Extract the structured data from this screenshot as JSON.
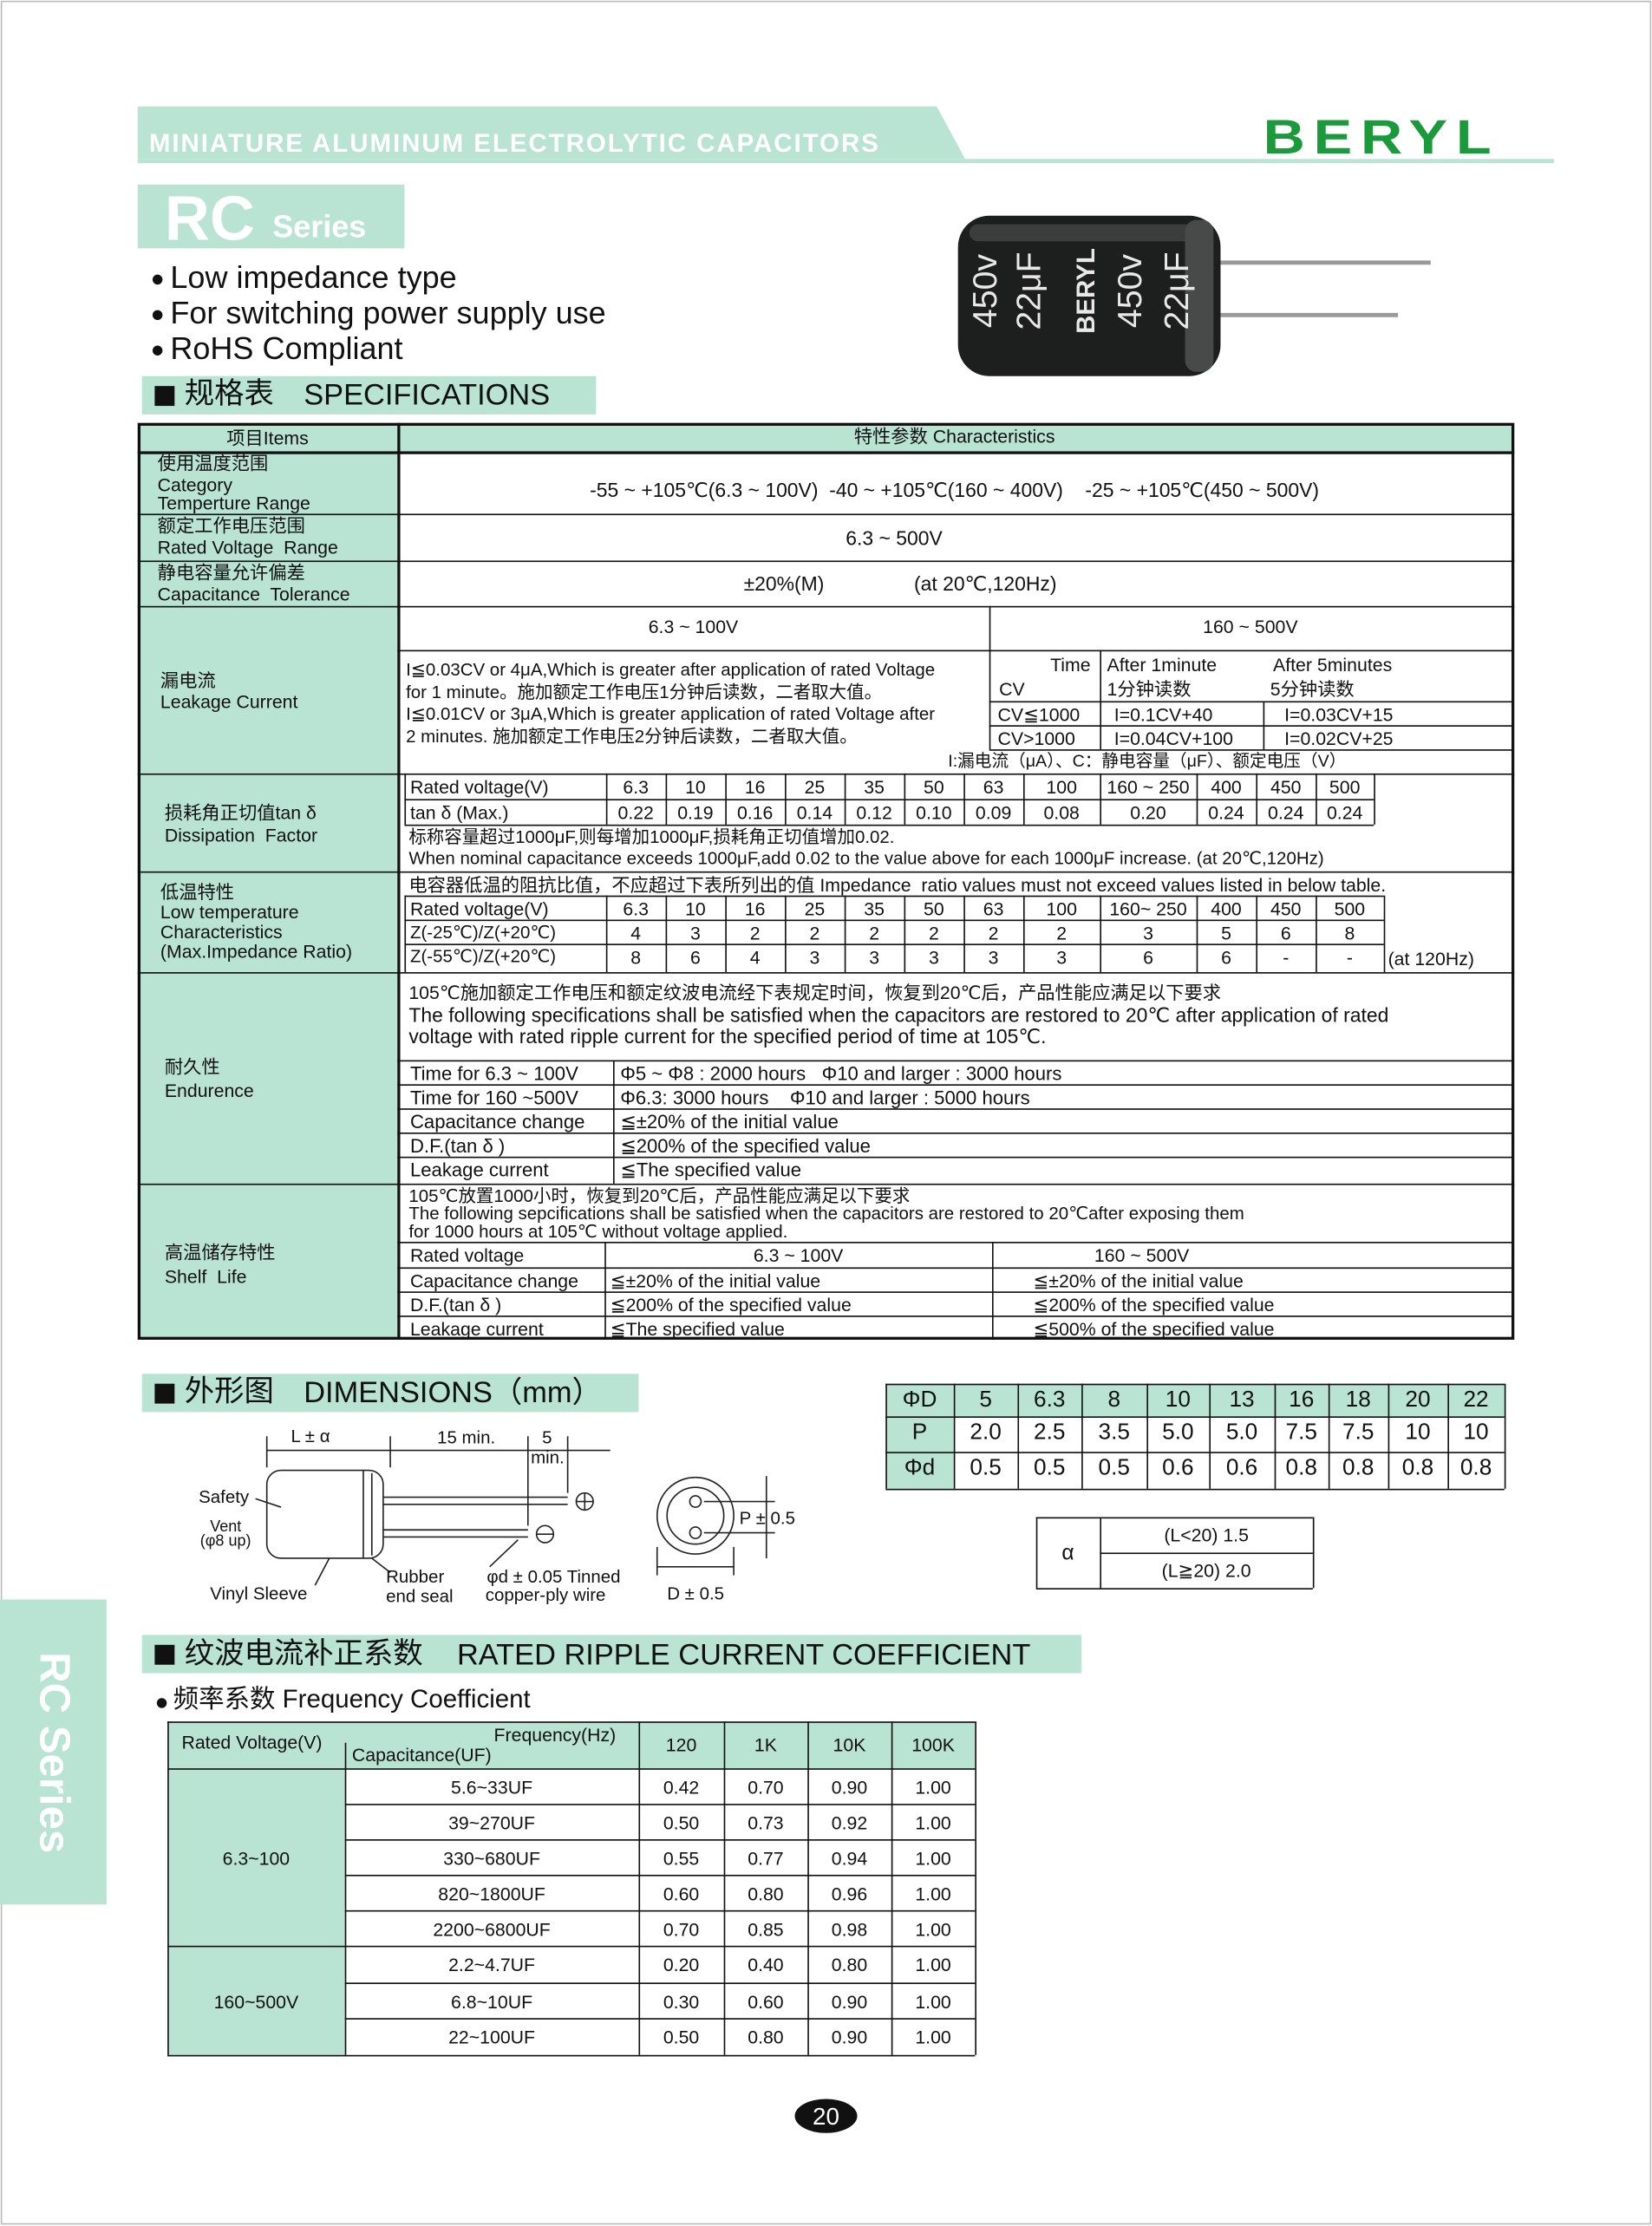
{
  "header": {
    "title": "MINIATURE ALUMINUM ELECTROLYTIC CAPACITORS",
    "brand": "BERYL"
  },
  "series": {
    "code": "RC",
    "label": "Series"
  },
  "features": [
    "Low impedance type",
    "For switching power supply use",
    "RoHS Compliant"
  ],
  "product_photo": {
    "lines": [
      "450v",
      "22μF",
      "BERYL",
      "450v",
      "22μF"
    ]
  },
  "specifications": {
    "heading_cn": "规格表",
    "heading_en": "SPECIFICATIONS",
    "items_header": "项目Items",
    "characteristics_header": "特性参数 Characteristics",
    "category_temperature": {
      "label_cn": "使用温度范围",
      "label_en": [
        "Category",
        "Temperture Range"
      ],
      "value": "-55 ~ +105℃(6.3 ~ 100V)  -40 ~ +105℃(160 ~ 400V)    -25 ~ +105℃(450 ~ 500V)"
    },
    "rated_voltage": {
      "label_cn": "额定工作电压范围",
      "label_en": "Rated Voltage  Range",
      "value": "6.3 ~ 500V"
    },
    "tolerance": {
      "label_cn": "静电容量允许偏差",
      "label_en": "Capacitance  Tolerance",
      "value": "±20%(M)",
      "condition": "(at 20℃,120Hz)"
    },
    "leakage": {
      "label_cn": "漏电流",
      "label_en": "Leakage Current",
      "low_range": "6.3 ~ 100V",
      "high_range": "160 ~ 500V",
      "low_text": [
        "I≦0.03CV or 4μA,Which is greater after application of rated Voltage",
        "for 1 minute。施加额定工作电压1分钟后读数，二者取大值。",
        "I≦0.01CV or 3μA,Which is greater application of rated Voltage after",
        "2 minutes. 施加额定工作电压2分钟后读数，二者取大值。"
      ],
      "high_table": {
        "corner_top": "Time",
        "corner_bottom": "CV",
        "col1": [
          "After 1minute",
          "1分钟读数"
        ],
        "col2": [
          "After 5minutes",
          "5分钟读数"
        ],
        "rows": [
          [
            "CV≦1000",
            "I=0.1CV+40",
            "I=0.03CV+15"
          ],
          [
            "CV>1000",
            "I=0.04CV+100",
            "I=0.02CV+25"
          ]
        ]
      },
      "note": "I:漏电流（μA）、C：静电容量（μF）、额定电压（V）"
    },
    "dissipation": {
      "label_cn": "损耗角正切值tan δ",
      "label_en": "Dissipation  Factor",
      "header": "Rated voltage(V)",
      "voltages": [
        "6.3",
        "10",
        "16",
        "25",
        "35",
        "50",
        "63",
        "100",
        "160 ~ 250",
        "400",
        "450",
        "500"
      ],
      "row_label": "tan δ (Max.)",
      "values": [
        "0.22",
        "0.19",
        "0.16",
        "0.14",
        "0.12",
        "0.10",
        "0.09",
        "0.08",
        "0.20",
        "0.24",
        "0.24",
        "0.24"
      ],
      "notes": [
        "标称容量超过1000μF,则每增加1000μF,损耗角正切值增加0.02.",
        "When nominal capacitance exceeds 1000μF,add 0.02 to the value above for each 1000μF increase. (at 20℃,120Hz)"
      ]
    },
    "low_temperature": {
      "label_cn": "低温特性",
      "label_en": [
        "Low temperature",
        "Characteristics",
        "(Max.Impedance Ratio)"
      ],
      "note": "电容器低温的阻抗比值，不应超过下表所列出的值 Impedance  ratio values must not exceed values listed in below table.",
      "header": "Rated voltage(V)",
      "voltages": [
        "6.3",
        "10",
        "16",
        "25",
        "35",
        "50",
        "63",
        "100",
        "160~ 250",
        "400",
        "450",
        "500"
      ],
      "rows": [
        {
          "label": "Z(-25℃)/Z(+20℃)",
          "values": [
            "4",
            "3",
            "2",
            "2",
            "2",
            "2",
            "2",
            "2",
            "3",
            "5",
            "6",
            "8"
          ]
        },
        {
          "label": "Z(-55℃)/Z(+20℃)",
          "values": [
            "8",
            "6",
            "4",
            "3",
            "3",
            "3",
            "3",
            "3",
            "6",
            "6",
            "-",
            "-"
          ]
        }
      ],
      "condition": "(at 120Hz)"
    },
    "endurance": {
      "label_cn": "耐久性",
      "label_en": "Endurence",
      "text_cn": "105℃施加额定工作电压和额定纹波电流经下表规定时间，恢复到20℃后，产品性能应满足以下要求",
      "text_en": [
        "The following specifications shall be satisfied when the capacitors are restored to 20℃ after application of rated",
        "voltage with rated ripple current for the specified period of time at 105℃."
      ],
      "rows": [
        [
          "Time for 6.3 ~ 100V",
          "Φ5 ~ Φ8 : 2000 hours   Φ10 and larger : 3000 hours"
        ],
        [
          "Time for 160 ~500V",
          "Φ6.3: 3000 hours    Φ10 and larger : 5000 hours"
        ],
        [
          "Capacitance change",
          "≦±20% of the initial value"
        ],
        [
          "D.F.(tan δ )",
          "≦200% of the specified value"
        ],
        [
          "Leakage current",
          "≦The specified value"
        ]
      ]
    },
    "shelf_life": {
      "label_cn": "高温储存特性",
      "label_en": "Shelf  Life",
      "text_cn": "105℃放置1000小时，恢复到20℃后，产品性能应满足以下要求",
      "text_en": [
        "The following sepcifications shall be satisfied when the capacitors are restored to 20℃after exposing them",
        "for 1000 hours at 105℃ without voltage applied."
      ],
      "header": [
        "Rated voltage",
        "6.3 ~ 100V",
        "160 ~ 500V"
      ],
      "rows": [
        [
          "Capacitance change",
          "≦±20% of the initial value",
          "≦±20% of the initial value"
        ],
        [
          "D.F.(tan δ )",
          "≦200% of the specified value",
          "≦200% of the specified value"
        ],
        [
          "Leakage current",
          "≦The specified value",
          "≦500% of the specified value"
        ]
      ]
    }
  },
  "dimensions": {
    "heading_cn": "外形图",
    "heading_en": "DIMENSIONS（mm）",
    "diagram_labels": {
      "length": "L ± α",
      "lead_min": "15 min.",
      "tail": "5",
      "tail_unit": "min.",
      "safety": "Safety",
      "vent": "Vent",
      "vent_size": "(φ8 up)",
      "sleeve": "Vinyl Sleeve",
      "rubber": "Rubber",
      "end_seal": "end seal",
      "wire": "φd ± 0.05 Tinned",
      "wire_type": "copper-ply wire",
      "pitch": "P ± 0.5",
      "diameter": "D ± 0.5"
    },
    "table": [
      [
        "ΦD",
        "5",
        "6.3",
        "8",
        "10",
        "13",
        "16",
        "18",
        "20",
        "22"
      ],
      [
        "P",
        "2.0",
        "2.5",
        "3.5",
        "5.0",
        "5.0",
        "7.5",
        "7.5",
        "10",
        "10"
      ],
      [
        "Φd",
        "0.5",
        "0.5",
        "0.5",
        "0.6",
        "0.6",
        "0.8",
        "0.8",
        "0.8",
        "0.8"
      ]
    ],
    "alpha": {
      "symbol": "α",
      "rows": [
        "(L<20) 1.5",
        "(L≧20) 2.0"
      ]
    }
  },
  "ripple": {
    "heading_cn": "纹波电流补正系数",
    "heading_en": "RATED RIPPLE CURRENT COEFFICIENT",
    "subheading": "频率系数 Frequency Coefficient",
    "header": {
      "rated_voltage": "Rated Voltage(V)",
      "frequency": "Frequency(Hz)",
      "capacitance": "Capacitance(UF)",
      "frequencies": [
        "120",
        "1K",
        "10K",
        "100K"
      ]
    },
    "groups": [
      {
        "voltage": "6.3~100",
        "rows": [
          {
            "capacitance": "5.6~33UF",
            "values": [
              "0.42",
              "0.70",
              "0.90",
              "1.00"
            ]
          },
          {
            "capacitance": "39~270UF",
            "values": [
              "0.50",
              "0.73",
              "0.92",
              "1.00"
            ]
          },
          {
            "capacitance": "330~680UF",
            "values": [
              "0.55",
              "0.77",
              "0.94",
              "1.00"
            ]
          },
          {
            "capacitance": "820~1800UF",
            "values": [
              "0.60",
              "0.80",
              "0.96",
              "1.00"
            ]
          },
          {
            "capacitance": "2200~6800UF",
            "values": [
              "0.70",
              "0.85",
              "0.98",
              "1.00"
            ]
          }
        ]
      },
      {
        "voltage": "160~500V",
        "rows": [
          {
            "capacitance": "2.2~4.7UF",
            "values": [
              "0.20",
              "0.40",
              "0.80",
              "1.00"
            ]
          },
          {
            "capacitance": "6.8~10UF",
            "values": [
              "0.30",
              "0.60",
              "0.90",
              "1.00"
            ]
          },
          {
            "capacitance": "22~100UF",
            "values": [
              "0.50",
              "0.80",
              "0.90",
              "1.00"
            ]
          }
        ]
      }
    ]
  },
  "side_tab": "RC Series",
  "page_number": "20"
}
